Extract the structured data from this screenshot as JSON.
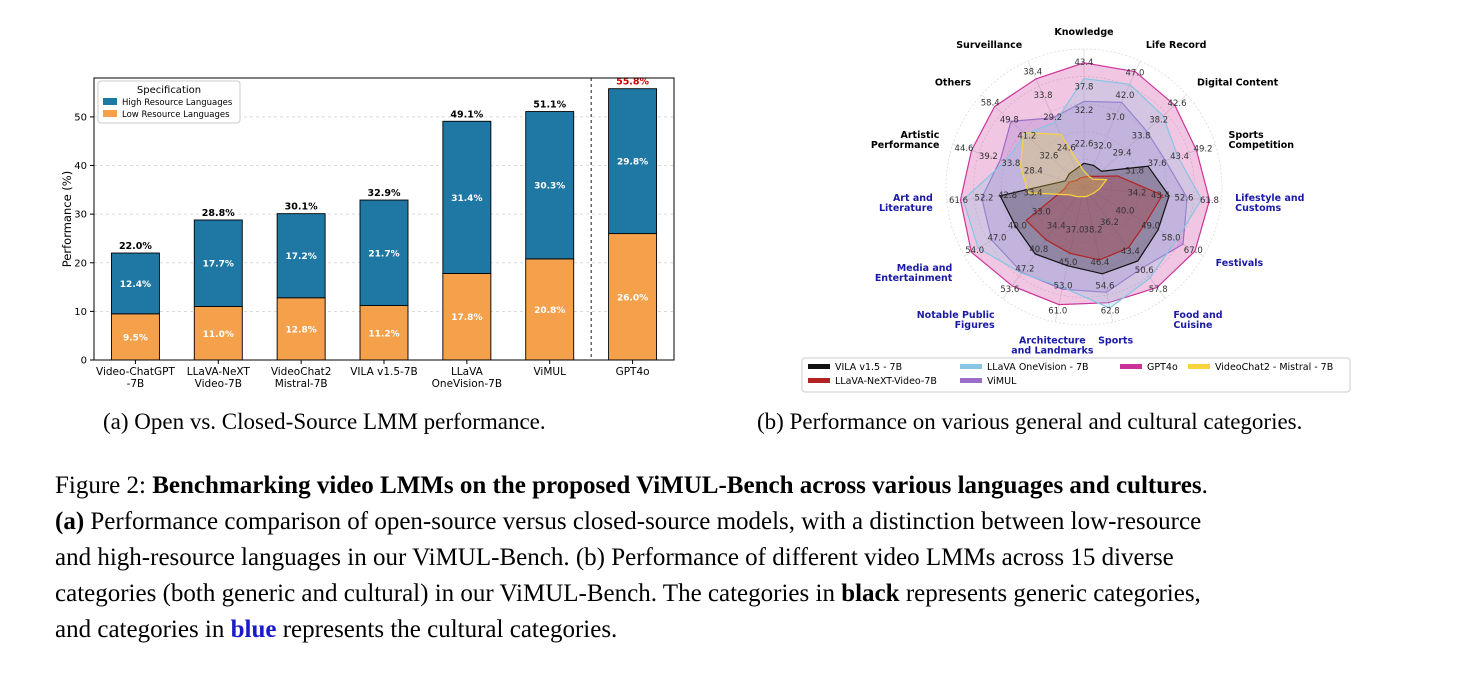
{
  "chart_data": [
    {
      "type": "bar",
      "stacked": true,
      "ylabel": "Performance (%)",
      "ylim": [
        0,
        58
      ],
      "yticks": [
        0,
        10,
        20,
        30,
        40,
        50
      ],
      "grid": true,
      "categories": [
        "Video-ChatGPT\n-7B",
        "LLaVA-NeXT\nVideo-7B",
        "VideoChat2\nMistral-7B",
        "VILA v1.5-7B",
        "LLaVA\nOneVision-7B",
        "ViMUL",
        "GPT4o"
      ],
      "legend": {
        "title": "Specification",
        "position": "top-left"
      },
      "series": [
        {
          "name": "Low Resource Languages",
          "color": "#f5a04a",
          "values": [
            9.5,
            11.0,
            12.8,
            11.2,
            17.8,
            20.8,
            26.0
          ],
          "labels": [
            "9.5%",
            "11.0%",
            "12.8%",
            "11.2%",
            "17.8%",
            "20.8%",
            "26.0%"
          ]
        },
        {
          "name": "High Resource Languages",
          "color": "#1f77a4",
          "values": [
            12.4,
            17.7,
            17.2,
            21.7,
            31.4,
            30.3,
            29.8
          ],
          "labels": [
            "12.4%",
            "17.7%",
            "17.2%",
            "21.7%",
            "31.4%",
            "30.3%",
            "29.8%"
          ]
        }
      ],
      "totals": [
        22.0,
        28.8,
        30.1,
        32.9,
        49.1,
        51.1,
        55.8
      ],
      "total_labels": [
        "22.0%",
        "28.8%",
        "30.1%",
        "32.9%",
        "49.1%",
        "51.1%",
        "55.8%"
      ],
      "highlight_color": "#cc0000",
      "highlight_index": 6,
      "separator_after_index": 5
    },
    {
      "type": "radar",
      "rmax": 70,
      "categories": [
        {
          "label": "Knowledge",
          "cultural": false
        },
        {
          "label": "Life Record",
          "cultural": false
        },
        {
          "label": "Digital Content",
          "cultural": false
        },
        {
          "label": "Sports\nCompetition",
          "cultural": false
        },
        {
          "label": "Lifestyle and\nCustoms",
          "cultural": true
        },
        {
          "label": "Festivals",
          "cultural": true
        },
        {
          "label": "Food and\nCuisine",
          "cultural": true
        },
        {
          "label": "Sports",
          "cultural": true
        },
        {
          "label": "Architecture\nand Landmarks",
          "cultural": true
        },
        {
          "label": "Notable Public\nFigures",
          "cultural": true
        },
        {
          "label": "Media and\nEntertainment",
          "cultural": true
        },
        {
          "label": "Art and\nLiterature",
          "cultural": true
        },
        {
          "label": "Artistic\nPerformance",
          "cultural": false
        },
        {
          "label": "Others",
          "cultural": false
        },
        {
          "label": "Surveillance",
          "cultural": false
        }
      ],
      "series": [
        {
          "name": "GPT4o",
          "color": "#cc3399",
          "values": [
            63,
            64,
            62,
            60,
            64,
            65,
            63,
            60,
            61,
            62,
            66,
            63,
            60,
            61,
            60
          ]
        },
        {
          "name": "ViMUL",
          "color": "#9a6dc8",
          "values": [
            43.4,
            47.0,
            42.6,
            43.4,
            52.6,
            58.0,
            50.6,
            54.6,
            53.0,
            53.6,
            54.0,
            52.2,
            44.6,
            49.8,
            38.4
          ]
        },
        {
          "name": "LLaVA OneVision - 7B",
          "color": "#87c5e2",
          "values": [
            55,
            57,
            54,
            50,
            60,
            54,
            57,
            62.8,
            52,
            54,
            62,
            61.6,
            42,
            40,
            36
          ]
        },
        {
          "name": "VILA v1.5 - 7B",
          "color": "#111111",
          "values": [
            12,
            12,
            12,
            34.2,
            43.4,
            43.4,
            46.4,
            45.0,
            40.8,
            42,
            40.0,
            42.8,
            10,
            10,
            10
          ]
        },
        {
          "name": "LLaVA-NeXT-Video-7B",
          "color": "#b22222",
          "values": [
            5,
            6,
            8,
            18,
            40.0,
            36.2,
            38.2,
            37.8,
            34.4,
            33.0,
            33.9,
            10,
            8,
            5,
            5
          ]
        },
        {
          "name": "VideoChat2 - Mistral - 7B",
          "color": "#f7d43a",
          "values": [
            8,
            6,
            6,
            12,
            8,
            6,
            5,
            5,
            5,
            6,
            8,
            28.4,
            33.8,
            41.2,
            29.2
          ]
        }
      ],
      "value_labels": [
        {
          "idx": 0,
          "r": 63.5,
          "text": "43.4"
        },
        {
          "idx": 0,
          "r": 51,
          "text": "37.8"
        },
        {
          "idx": 0,
          "r": 39,
          "text": "32.2"
        },
        {
          "idx": 0,
          "r": 22,
          "text": "22.6"
        },
        {
          "idx": 1,
          "r": 63.5,
          "text": "47.0"
        },
        {
          "idx": 1,
          "r": 51,
          "text": "42.0"
        },
        {
          "idx": 1,
          "r": 39,
          "text": "37.0"
        },
        {
          "idx": 1,
          "r": 23,
          "text": "32.0"
        },
        {
          "idx": 2,
          "r": 63.5,
          "text": "42.6"
        },
        {
          "idx": 2,
          "r": 51,
          "text": "38.2"
        },
        {
          "idx": 2,
          "r": 39,
          "text": "33.8"
        },
        {
          "idx": 2,
          "r": 26,
          "text": "29.4"
        },
        {
          "idx": 3,
          "r": 63.5,
          "text": "49.2"
        },
        {
          "idx": 3,
          "r": 51,
          "text": "43.4"
        },
        {
          "idx": 3,
          "r": 39,
          "text": "37.6"
        },
        {
          "idx": 3,
          "r": 27,
          "text": "31.8"
        },
        {
          "idx": 4,
          "r": 64,
          "text": "61.8"
        },
        {
          "idx": 4,
          "r": 51,
          "text": "52.6"
        },
        {
          "idx": 4,
          "r": 39,
          "text": "43.4"
        },
        {
          "idx": 4,
          "r": 27,
          "text": "34.2"
        },
        {
          "idx": 5,
          "r": 64,
          "text": "67.0"
        },
        {
          "idx": 5,
          "r": 51,
          "text": "58.0"
        },
        {
          "idx": 5,
          "r": 39,
          "text": "49.0"
        },
        {
          "idx": 5,
          "r": 24,
          "text": "40.0"
        },
        {
          "idx": 6,
          "r": 64,
          "text": "57.8"
        },
        {
          "idx": 6,
          "r": 52,
          "text": "50.6"
        },
        {
          "idx": 6,
          "r": 40,
          "text": "43.4"
        },
        {
          "idx": 6,
          "r": 22,
          "text": "36.2"
        },
        {
          "idx": 7,
          "r": 64,
          "text": "62.8"
        },
        {
          "idx": 7,
          "r": 51,
          "text": "54.6"
        },
        {
          "idx": 7,
          "r": 39,
          "text": "46.4"
        },
        {
          "idx": 7,
          "r": 22,
          "text": "38.2"
        },
        {
          "idx": 8,
          "r": 64,
          "text": "61.0"
        },
        {
          "idx": 8,
          "r": 51,
          "text": "53.0"
        },
        {
          "idx": 8,
          "r": 39,
          "text": "45.0"
        },
        {
          "idx": 8,
          "r": 22,
          "text": "37.0"
        },
        {
          "idx": 9,
          "r": 64,
          "text": "53.6"
        },
        {
          "idx": 9,
          "r": 51,
          "text": "47.2"
        },
        {
          "idx": 9,
          "r": 39,
          "text": "40.8"
        },
        {
          "idx": 9,
          "r": 24,
          "text": "34.4"
        },
        {
          "idx": 10,
          "r": 64,
          "text": "54.0"
        },
        {
          "idx": 10,
          "r": 51,
          "text": "47.0"
        },
        {
          "idx": 10,
          "r": 39,
          "text": "40.0"
        },
        {
          "idx": 10,
          "r": 25,
          "text": "33.0"
        },
        {
          "idx": 11,
          "r": 64,
          "text": "61.6"
        },
        {
          "idx": 11,
          "r": 51,
          "text": "52.2"
        },
        {
          "idx": 11,
          "r": 39,
          "text": "42.8"
        },
        {
          "idx": 11,
          "r": 26,
          "text": "33.4"
        },
        {
          "idx": 12,
          "r": 64,
          "text": "44.6"
        },
        {
          "idx": 12,
          "r": 51,
          "text": "39.2"
        },
        {
          "idx": 12,
          "r": 39,
          "text": "33.8"
        },
        {
          "idx": 12,
          "r": 27,
          "text": "28.4"
        },
        {
          "idx": 13,
          "r": 64,
          "text": "58.4"
        },
        {
          "idx": 13,
          "r": 51,
          "text": "49.8"
        },
        {
          "idx": 13,
          "r": 39,
          "text": "41.2"
        },
        {
          "idx": 13,
          "r": 24,
          "text": "32.6"
        },
        {
          "idx": 14,
          "r": 64,
          "text": "38.4"
        },
        {
          "idx": 14,
          "r": 51,
          "text": "33.8"
        },
        {
          "idx": 14,
          "r": 39,
          "text": "29.2"
        },
        {
          "idx": 14,
          "r": 22,
          "text": "24.6"
        }
      ],
      "legend": {
        "position": "bottom",
        "order": [
          "VILA v1.5 - 7B",
          "LLaVA OneVision - 7B",
          "GPT4o",
          "VideoChat2 - Mistral - 7B",
          "LLaVA-NeXT-Video-7B",
          "ViMUL"
        ]
      }
    }
  ],
  "captions": {
    "a": "(a) Open vs. Closed-Source LMM performance.",
    "b": "(b) Performance on various general and cultural categories."
  },
  "figure_caption": {
    "label": "Figure 2: ",
    "bold_title": "Benchmarking video LMMs on the proposed ViMUL-Bench across various languages and cultures",
    "title_end": ".",
    "a_marker": "(a)",
    "line2_rest": " Performance comparison of open-source versus closed-source models, with a distinction between low-resource",
    "line3": "and high-resource languages in our ViMUL-Bench. (b) Performance of different video LMMs across 15 diverse",
    "line4_start": "categories (both generic and cultural) in our ViMUL-Bench. The categories in ",
    "line4_bold": "black",
    "line4_end": " represents generic categories,",
    "line5_start": "and categories in ",
    "line5_blue": "blue",
    "line5_end": " represents the cultural categories."
  },
  "colors": {
    "cultural_label": "#1a1aa6",
    "generic_label": "#000000"
  }
}
